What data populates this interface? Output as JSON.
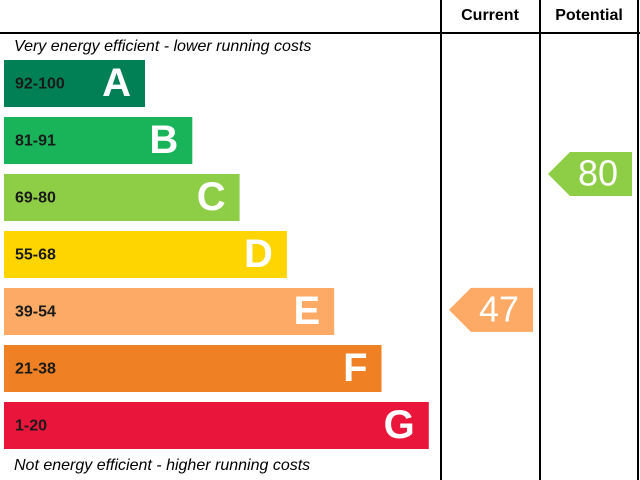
{
  "headers": {
    "current": "Current",
    "potential": "Potential"
  },
  "top_label": "Very energy efficient - lower running costs",
  "bottom_label": "Not energy efficient - higher running costs",
  "bands": [
    {
      "range": "92-100",
      "letter": "A",
      "color": "#008054"
    },
    {
      "range": "81-91",
      "letter": "B",
      "color": "#19b459"
    },
    {
      "range": "69-80",
      "letter": "C",
      "color": "#8dce46"
    },
    {
      "range": "55-68",
      "letter": "D",
      "color": "#ffd500"
    },
    {
      "range": "39-54",
      "letter": "E",
      "color": "#fcaa65"
    },
    {
      "range": "21-38",
      "letter": "F",
      "color": "#ef8023"
    },
    {
      "range": "1-20",
      "letter": "G",
      "color": "#e9153b"
    }
  ],
  "current": {
    "value": 47,
    "color": "#fcaa65"
  },
  "potential": {
    "value": 80,
    "color": "#8dce46"
  }
}
